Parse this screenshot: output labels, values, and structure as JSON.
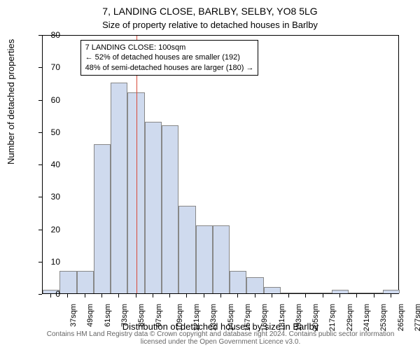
{
  "chart": {
    "type": "histogram",
    "title_main": "7, LANDING CLOSE, BARLBY, SELBY, YO8 5LG",
    "title_sub": "Size of property relative to detached houses in Barlby",
    "ylabel": "Number of detached properties",
    "xlabel": "Distribution of detached houses by size in Barlby",
    "credit": "Contains HM Land Registry data © Crown copyright and database right 2024. Contains public sector information licensed under the Open Government Licence v3.0.",
    "title_fontsize": 14,
    "subtitle_fontsize": 13,
    "label_fontsize": 13,
    "tick_fontsize": 12,
    "xtick_fontsize": 11,
    "credit_fontsize": 10,
    "background_color": "#ffffff",
    "border_color": "#000000",
    "text_color": "#000000",
    "credit_color": "#666666",
    "bar_fill": "#cfdaee",
    "bar_stroke": "#888888",
    "refline_color": "#d84a3a",
    "ylim": [
      0,
      80
    ],
    "ytick_step": 10,
    "categories": [
      "37sqm",
      "49sqm",
      "61sqm",
      "73sqm",
      "85sqm",
      "97sqm",
      "109sqm",
      "121sqm",
      "133sqm",
      "145sqm",
      "157sqm",
      "169sqm",
      "181sqm",
      "193sqm",
      "205sqm",
      "217sqm",
      "229sqm",
      "241sqm",
      "253sqm",
      "265sqm",
      "277sqm"
    ],
    "values": [
      1,
      7,
      7,
      46,
      65,
      62,
      53,
      52,
      27,
      21,
      21,
      7,
      5,
      2,
      0,
      0,
      0,
      1,
      0,
      0,
      1
    ],
    "refline_category_index": 5,
    "infobox": {
      "line1": "7 LANDING CLOSE: 100sqm",
      "line2": "← 52% of detached houses are smaller (192)",
      "line3": "48% of semi-detached houses are larger (180) →"
    },
    "bar_width_ratio": 1.0
  }
}
